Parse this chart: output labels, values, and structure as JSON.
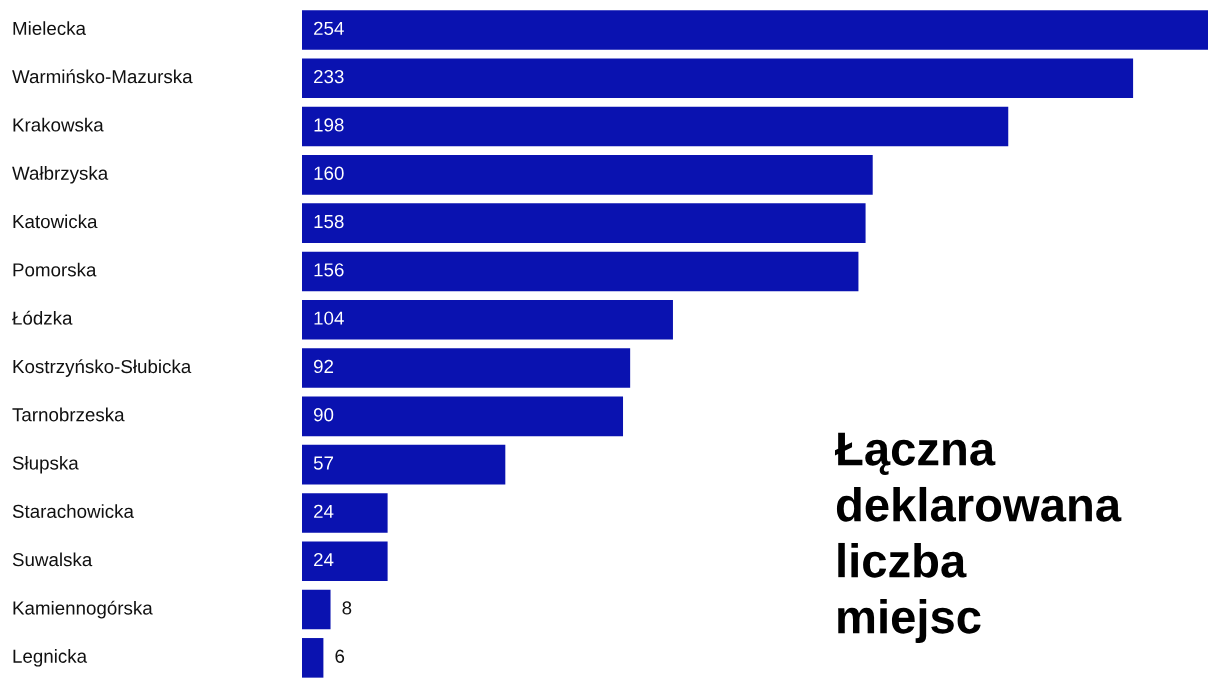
{
  "chart_data": {
    "type": "bar",
    "orientation": "horizontal",
    "title": "Łączna deklarowana liczba miejsc",
    "categories": [
      "Mielecka",
      "Warmińsko-Mazurska",
      "Krakowska",
      "Wałbrzyska",
      "Katowicka",
      "Pomorska",
      "Łódzka",
      "Kostrzyńsko-Słubicka",
      "Tarnobrzeska",
      "Słupska",
      "Starachowicka",
      "Suwalska",
      "Kamiennogórska",
      "Legnicka"
    ],
    "values": [
      254,
      233,
      198,
      160,
      158,
      156,
      104,
      92,
      90,
      57,
      24,
      24,
      8,
      6
    ],
    "color": "#0a12b0",
    "xlim": [
      0,
      254
    ],
    "data_labels": true
  }
}
